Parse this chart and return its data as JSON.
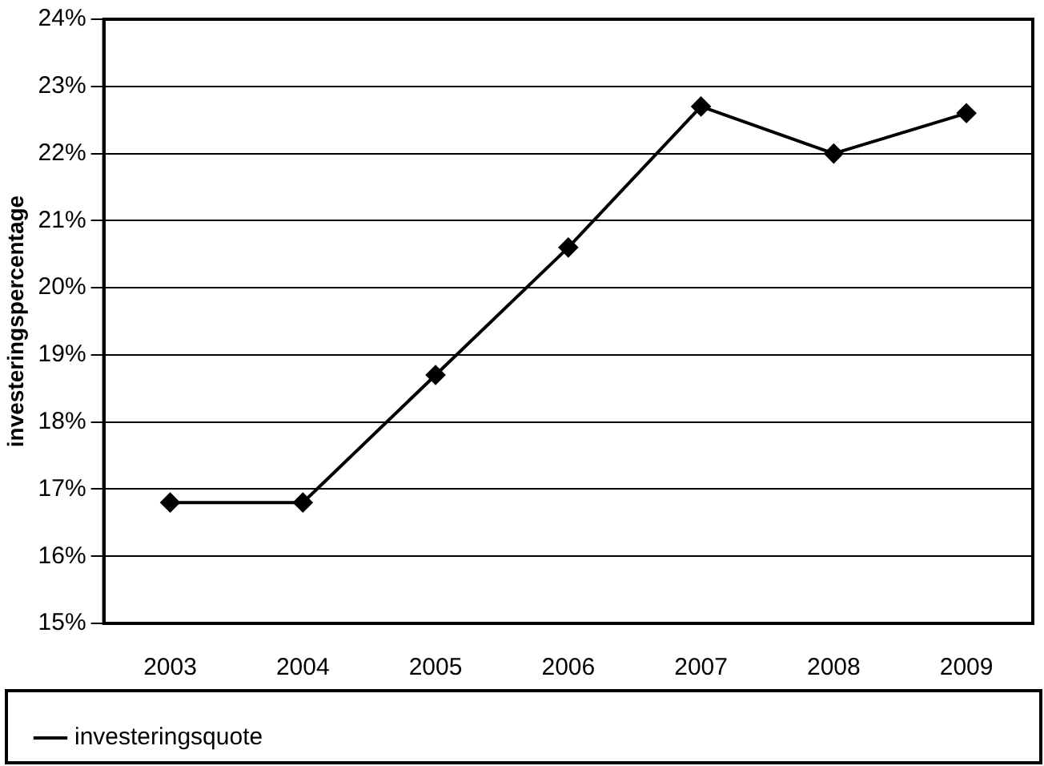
{
  "chart_data": {
    "type": "line",
    "ylabel": "investeringspercentage",
    "categories": [
      "2003",
      "2004",
      "2005",
      "2006",
      "2007",
      "2008",
      "2009"
    ],
    "series": [
      {
        "name": "investeringsquote",
        "color": "#000000",
        "values": [
          16.8,
          16.8,
          18.7,
          20.6,
          22.7,
          22.0,
          22.6
        ]
      }
    ],
    "ylim": [
      15,
      24
    ],
    "yticks": [
      {
        "value": 15,
        "label": "15%"
      },
      {
        "value": 16,
        "label": "16%"
      },
      {
        "value": 17,
        "label": "17%"
      },
      {
        "value": 18,
        "label": "18%"
      },
      {
        "value": 19,
        "label": "19%"
      },
      {
        "value": 20,
        "label": "20%"
      },
      {
        "value": 21,
        "label": "21%"
      },
      {
        "value": 22,
        "label": "22%"
      },
      {
        "value": 23,
        "label": "23%"
      },
      {
        "value": 24,
        "label": "24%"
      }
    ],
    "grid": "y",
    "legend": "bottom",
    "marker": "diamond",
    "line_style": "solid"
  }
}
